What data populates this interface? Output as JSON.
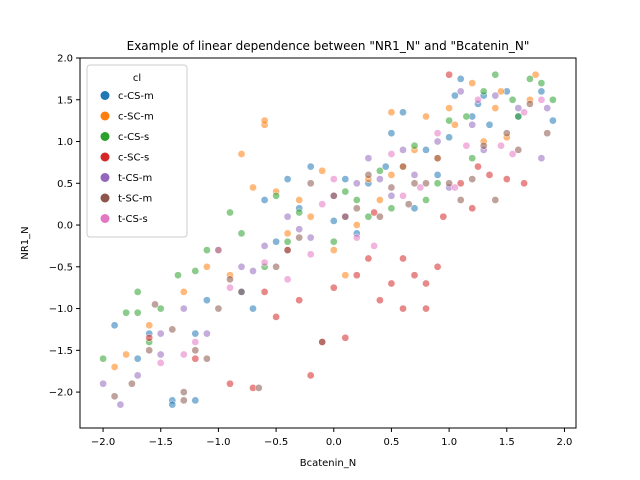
{
  "chart_data": {
    "type": "scatter",
    "title": "Example of linear dependence between \"NR1_N\" and \"Bcatenin_N\"",
    "xlabel": "Bcatenin_N",
    "ylabel": "NR1_N",
    "xlim": [
      -2.2,
      2.1
    ],
    "ylim": [
      -2.43,
      2.0
    ],
    "xticks": [
      -2.0,
      -1.5,
      -1.0,
      -0.5,
      0.0,
      0.5,
      1.0,
      1.5,
      2.0
    ],
    "yticks": [
      -2.0,
      -1.5,
      -1.0,
      -0.5,
      0.0,
      0.5,
      1.0,
      1.5,
      2.0
    ],
    "grid": false,
    "marker_alpha": 0.55,
    "legend": {
      "title": "cl",
      "placement": "top-left"
    },
    "series": [
      {
        "name": "c-CS-m",
        "color": "#1f77b4",
        "points": [
          [
            -1.9,
            -1.2
          ],
          [
            -1.6,
            -1.3
          ],
          [
            -1.4,
            -2.1
          ],
          [
            -1.4,
            -2.15
          ],
          [
            -1.2,
            -2.1
          ],
          [
            -1.1,
            -0.9
          ],
          [
            -0.8,
            -0.8
          ],
          [
            -0.7,
            -1.0
          ],
          [
            -0.6,
            0.3
          ],
          [
            -0.4,
            0.55
          ],
          [
            -0.3,
            0.2
          ],
          [
            -0.2,
            0.7
          ],
          [
            0.1,
            0.55
          ],
          [
            0.3,
            0.5
          ],
          [
            0.5,
            1.1
          ],
          [
            0.6,
            1.35
          ],
          [
            0.8,
            0.9
          ],
          [
            1.0,
            1.05
          ],
          [
            1.05,
            1.55
          ],
          [
            1.1,
            1.75
          ],
          [
            1.2,
            1.3
          ],
          [
            1.3,
            1.55
          ],
          [
            1.5,
            1.6
          ],
          [
            1.6,
            1.3
          ],
          [
            1.8,
            1.6
          ],
          [
            1.9,
            1.25
          ],
          [
            -1.7,
            -1.6
          ],
          [
            -1.2,
            -1.3
          ],
          [
            0.0,
            0.05
          ],
          [
            0.45,
            0.7
          ],
          [
            0.9,
            0.6
          ],
          [
            1.35,
            1.2
          ],
          [
            -0.5,
            -0.2
          ],
          [
            0.2,
            -0.1
          ],
          [
            0.7,
            0.2
          ],
          [
            1.25,
            1.45
          ]
        ]
      },
      {
        "name": "c-SC-m",
        "color": "#ff7f0e",
        "points": [
          [
            -1.9,
            -1.7
          ],
          [
            -1.8,
            -1.55
          ],
          [
            -1.6,
            -1.2
          ],
          [
            -1.3,
            -0.8
          ],
          [
            -1.1,
            -0.5
          ],
          [
            -0.9,
            -0.6
          ],
          [
            -0.8,
            0.85
          ],
          [
            -0.6,
            1.2
          ],
          [
            -0.6,
            1.25
          ],
          [
            -0.5,
            0.4
          ],
          [
            -0.4,
            -0.1
          ],
          [
            -0.3,
            0.3
          ],
          [
            -0.1,
            0.65
          ],
          [
            0.0,
            -0.3
          ],
          [
            0.2,
            0.0
          ],
          [
            0.3,
            0.55
          ],
          [
            0.5,
            0.6
          ],
          [
            0.5,
            1.35
          ],
          [
            0.7,
            0.9
          ],
          [
            0.9,
            0.8
          ],
          [
            1.0,
            1.4
          ],
          [
            1.05,
            1.2
          ],
          [
            1.2,
            1.7
          ],
          [
            1.4,
            1.4
          ],
          [
            1.5,
            1.05
          ],
          [
            1.7,
            1.5
          ],
          [
            1.75,
            1.8
          ],
          [
            -1.0,
            -0.3
          ],
          [
            -0.2,
            0.1
          ],
          [
            0.4,
            0.3
          ],
          [
            0.8,
            1.3
          ],
          [
            1.3,
            1.0
          ],
          [
            1.45,
            1.6
          ],
          [
            -0.7,
            0.45
          ],
          [
            0.1,
            -0.6
          ],
          [
            0.6,
            0.7
          ]
        ]
      },
      {
        "name": "c-CS-s",
        "color": "#2ca02c",
        "points": [
          [
            -2.0,
            -1.6
          ],
          [
            -1.8,
            -1.05
          ],
          [
            -1.7,
            -0.8
          ],
          [
            -1.7,
            -1.05
          ],
          [
            -1.5,
            -1.0
          ],
          [
            -1.35,
            -0.6
          ],
          [
            -1.1,
            -0.3
          ],
          [
            -0.9,
            0.15
          ],
          [
            -0.8,
            -0.1
          ],
          [
            -0.6,
            -0.5
          ],
          [
            -0.5,
            0.35
          ],
          [
            -0.3,
            0.15
          ],
          [
            0.0,
            -0.2
          ],
          [
            0.2,
            0.3
          ],
          [
            0.4,
            0.65
          ],
          [
            0.5,
            0.2
          ],
          [
            0.7,
            0.95
          ],
          [
            0.9,
            0.5
          ],
          [
            1.0,
            1.25
          ],
          [
            1.15,
            1.3
          ],
          [
            1.3,
            1.6
          ],
          [
            1.4,
            1.8
          ],
          [
            1.55,
            1.5
          ],
          [
            1.7,
            1.75
          ],
          [
            1.8,
            1.7
          ],
          [
            1.9,
            1.5
          ],
          [
            -1.6,
            -1.4
          ],
          [
            -0.4,
            -0.2
          ],
          [
            0.3,
            0.1
          ],
          [
            0.8,
            0.3
          ],
          [
            1.2,
            0.8
          ],
          [
            1.6,
            1.3
          ],
          [
            -1.2,
            -0.55
          ],
          [
            0.1,
            0.4
          ]
        ]
      },
      {
        "name": "c-SC-s",
        "color": "#d62728",
        "points": [
          [
            -1.6,
            -1.35
          ],
          [
            -1.2,
            -1.6
          ],
          [
            -0.9,
            -1.9
          ],
          [
            -0.7,
            -1.95
          ],
          [
            -0.5,
            -1.1
          ],
          [
            -0.3,
            -0.9
          ],
          [
            -0.2,
            -1.8
          ],
          [
            -0.1,
            -1.4
          ],
          [
            0.1,
            -1.35
          ],
          [
            0.2,
            -0.6
          ],
          [
            0.3,
            -0.4
          ],
          [
            0.4,
            -0.9
          ],
          [
            0.5,
            -0.7
          ],
          [
            0.6,
            -0.4
          ],
          [
            0.6,
            -1.0
          ],
          [
            0.7,
            -0.6
          ],
          [
            0.8,
            -0.7
          ],
          [
            0.8,
            -1.0
          ],
          [
            0.9,
            -0.5
          ],
          [
            1.0,
            1.8
          ],
          [
            1.1,
            0.5
          ],
          [
            1.2,
            0.2
          ],
          [
            1.35,
            0.6
          ],
          [
            1.5,
            0.55
          ],
          [
            1.65,
            0.5
          ],
          [
            -0.4,
            -0.3
          ],
          [
            -0.6,
            -0.8
          ],
          [
            0.0,
            -0.75
          ],
          [
            0.35,
            0.15
          ],
          [
            0.95,
            0.1
          ],
          [
            1.25,
            0.7
          ]
        ]
      },
      {
        "name": "t-CS-m",
        "color": "#9467bd",
        "points": [
          [
            -2.0,
            -1.9
          ],
          [
            -1.85,
            -2.15
          ],
          [
            -1.7,
            -1.8
          ],
          [
            -1.5,
            -1.3
          ],
          [
            -1.3,
            -1.0
          ],
          [
            -1.1,
            -1.3
          ],
          [
            -1.0,
            -0.3
          ],
          [
            -0.8,
            -0.5
          ],
          [
            -0.6,
            -0.25
          ],
          [
            -0.4,
            0.1
          ],
          [
            -0.2,
            -0.15
          ],
          [
            0.0,
            0.35
          ],
          [
            0.2,
            0.5
          ],
          [
            0.3,
            0.8
          ],
          [
            0.5,
            0.35
          ],
          [
            0.7,
            0.6
          ],
          [
            0.9,
            1.0
          ],
          [
            1.0,
            0.45
          ],
          [
            1.2,
            1.2
          ],
          [
            1.4,
            1.55
          ],
          [
            1.6,
            1.4
          ],
          [
            1.8,
            0.8
          ],
          [
            1.85,
            1.4
          ],
          [
            -1.5,
            -1.55
          ],
          [
            -0.7,
            -0.55
          ],
          [
            0.1,
            0.1
          ],
          [
            0.6,
            0.9
          ],
          [
            1.3,
            0.9
          ],
          [
            -0.3,
            -0.05
          ],
          [
            0.4,
            0.55
          ],
          [
            1.1,
            1.6
          ]
        ]
      },
      {
        "name": "t-SC-m",
        "color": "#8c564b",
        "points": [
          [
            -1.9,
            -2.05
          ],
          [
            -1.75,
            -1.9
          ],
          [
            -1.6,
            -1.5
          ],
          [
            -1.4,
            -1.25
          ],
          [
            -1.3,
            -2.0
          ],
          [
            -1.3,
            -2.1
          ],
          [
            -1.1,
            -1.6
          ],
          [
            -1.0,
            -1.0
          ],
          [
            -0.8,
            -0.8
          ],
          [
            -0.65,
            -1.95
          ],
          [
            -0.5,
            -0.5
          ],
          [
            -0.4,
            -0.3
          ],
          [
            -0.2,
            0.5
          ],
          [
            -0.1,
            -1.4
          ],
          [
            0.0,
            0.35
          ],
          [
            0.1,
            0.1
          ],
          [
            0.3,
            0.6
          ],
          [
            0.4,
            0.1
          ],
          [
            0.6,
            0.7
          ],
          [
            0.7,
            0.5
          ],
          [
            0.8,
            0.5
          ],
          [
            1.0,
            0.5
          ],
          [
            1.1,
            0.3
          ],
          [
            1.3,
            0.95
          ],
          [
            1.4,
            0.3
          ],
          [
            1.5,
            1.1
          ],
          [
            1.6,
            0.9
          ],
          [
            1.7,
            1.45
          ],
          [
            1.85,
            1.1
          ],
          [
            -1.55,
            -0.95
          ],
          [
            -0.9,
            -0.65
          ],
          [
            -0.3,
            -0.15
          ],
          [
            0.2,
            0.2
          ],
          [
            0.5,
            0.45
          ],
          [
            0.9,
            0.8
          ],
          [
            1.2,
            0.55
          ],
          [
            -1.2,
            -1.5
          ],
          [
            0.65,
            0.25
          ]
        ]
      },
      {
        "name": "t-CS-s",
        "color": "#e377c2",
        "points": [
          [
            -1.5,
            -1.65
          ],
          [
            -1.2,
            -1.4
          ],
          [
            -0.9,
            -0.75
          ],
          [
            -0.6,
            -0.45
          ],
          [
            -0.4,
            -0.65
          ],
          [
            -0.2,
            -0.35
          ],
          [
            0.0,
            0.55
          ],
          [
            0.2,
            -0.15
          ],
          [
            0.35,
            -0.25
          ],
          [
            0.5,
            0.85
          ],
          [
            0.75,
            0.45
          ],
          [
            0.9,
            1.1
          ],
          [
            1.05,
            0.45
          ],
          [
            1.25,
            1.5
          ],
          [
            1.45,
            0.95
          ],
          [
            1.65,
            1.35
          ],
          [
            1.8,
            1.5
          ],
          [
            -1.3,
            -1.55
          ],
          [
            -0.1,
            0.25
          ],
          [
            0.6,
            0.35
          ],
          [
            1.15,
            0.95
          ],
          [
            1.55,
            0.85
          ]
        ]
      }
    ]
  }
}
